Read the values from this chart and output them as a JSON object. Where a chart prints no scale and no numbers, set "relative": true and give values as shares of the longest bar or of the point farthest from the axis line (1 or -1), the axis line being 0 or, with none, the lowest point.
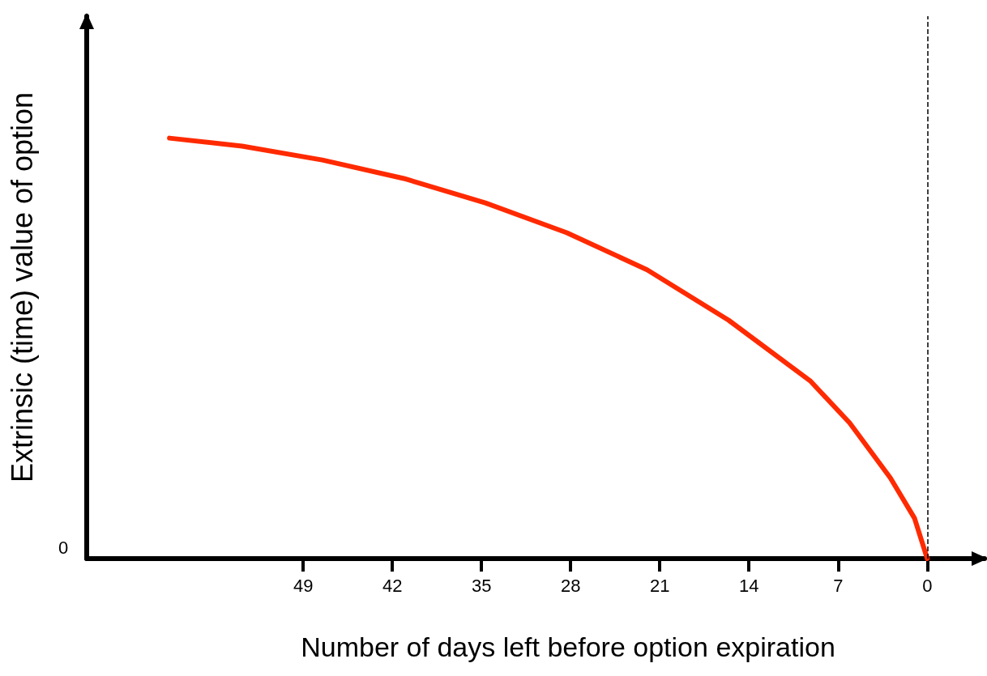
{
  "chart_data": {
    "type": "line",
    "relative": true,
    "xlabel": "Number of days left before option expiration",
    "ylabel": "Extrinsic (time) value of option",
    "x": [
      59.5,
      53.8,
      47.5,
      41.1,
      34.7,
      28.3,
      22.0,
      15.6,
      9.2,
      6.1,
      2.9,
      1.0,
      0
    ],
    "series": [
      {
        "color": "#ff2a00",
        "values": [
          1.0,
          0.981,
          0.948,
          0.904,
          0.846,
          0.775,
          0.687,
          0.567,
          0.423,
          0.323,
          0.192,
          0.096,
          0
        ]
      }
    ],
    "xlim": [
      66,
      -4.5
    ],
    "xticks": [
      49,
      42,
      35,
      28,
      21,
      14,
      7,
      0
    ],
    "ref_lines": [
      {
        "axis": "x",
        "value": 0,
        "color": "#000000",
        "line_style": "dashed"
      }
    ],
    "annotations": [
      "0"
    ],
    "grid": false,
    "marker": "none",
    "line_style": "solid"
  }
}
